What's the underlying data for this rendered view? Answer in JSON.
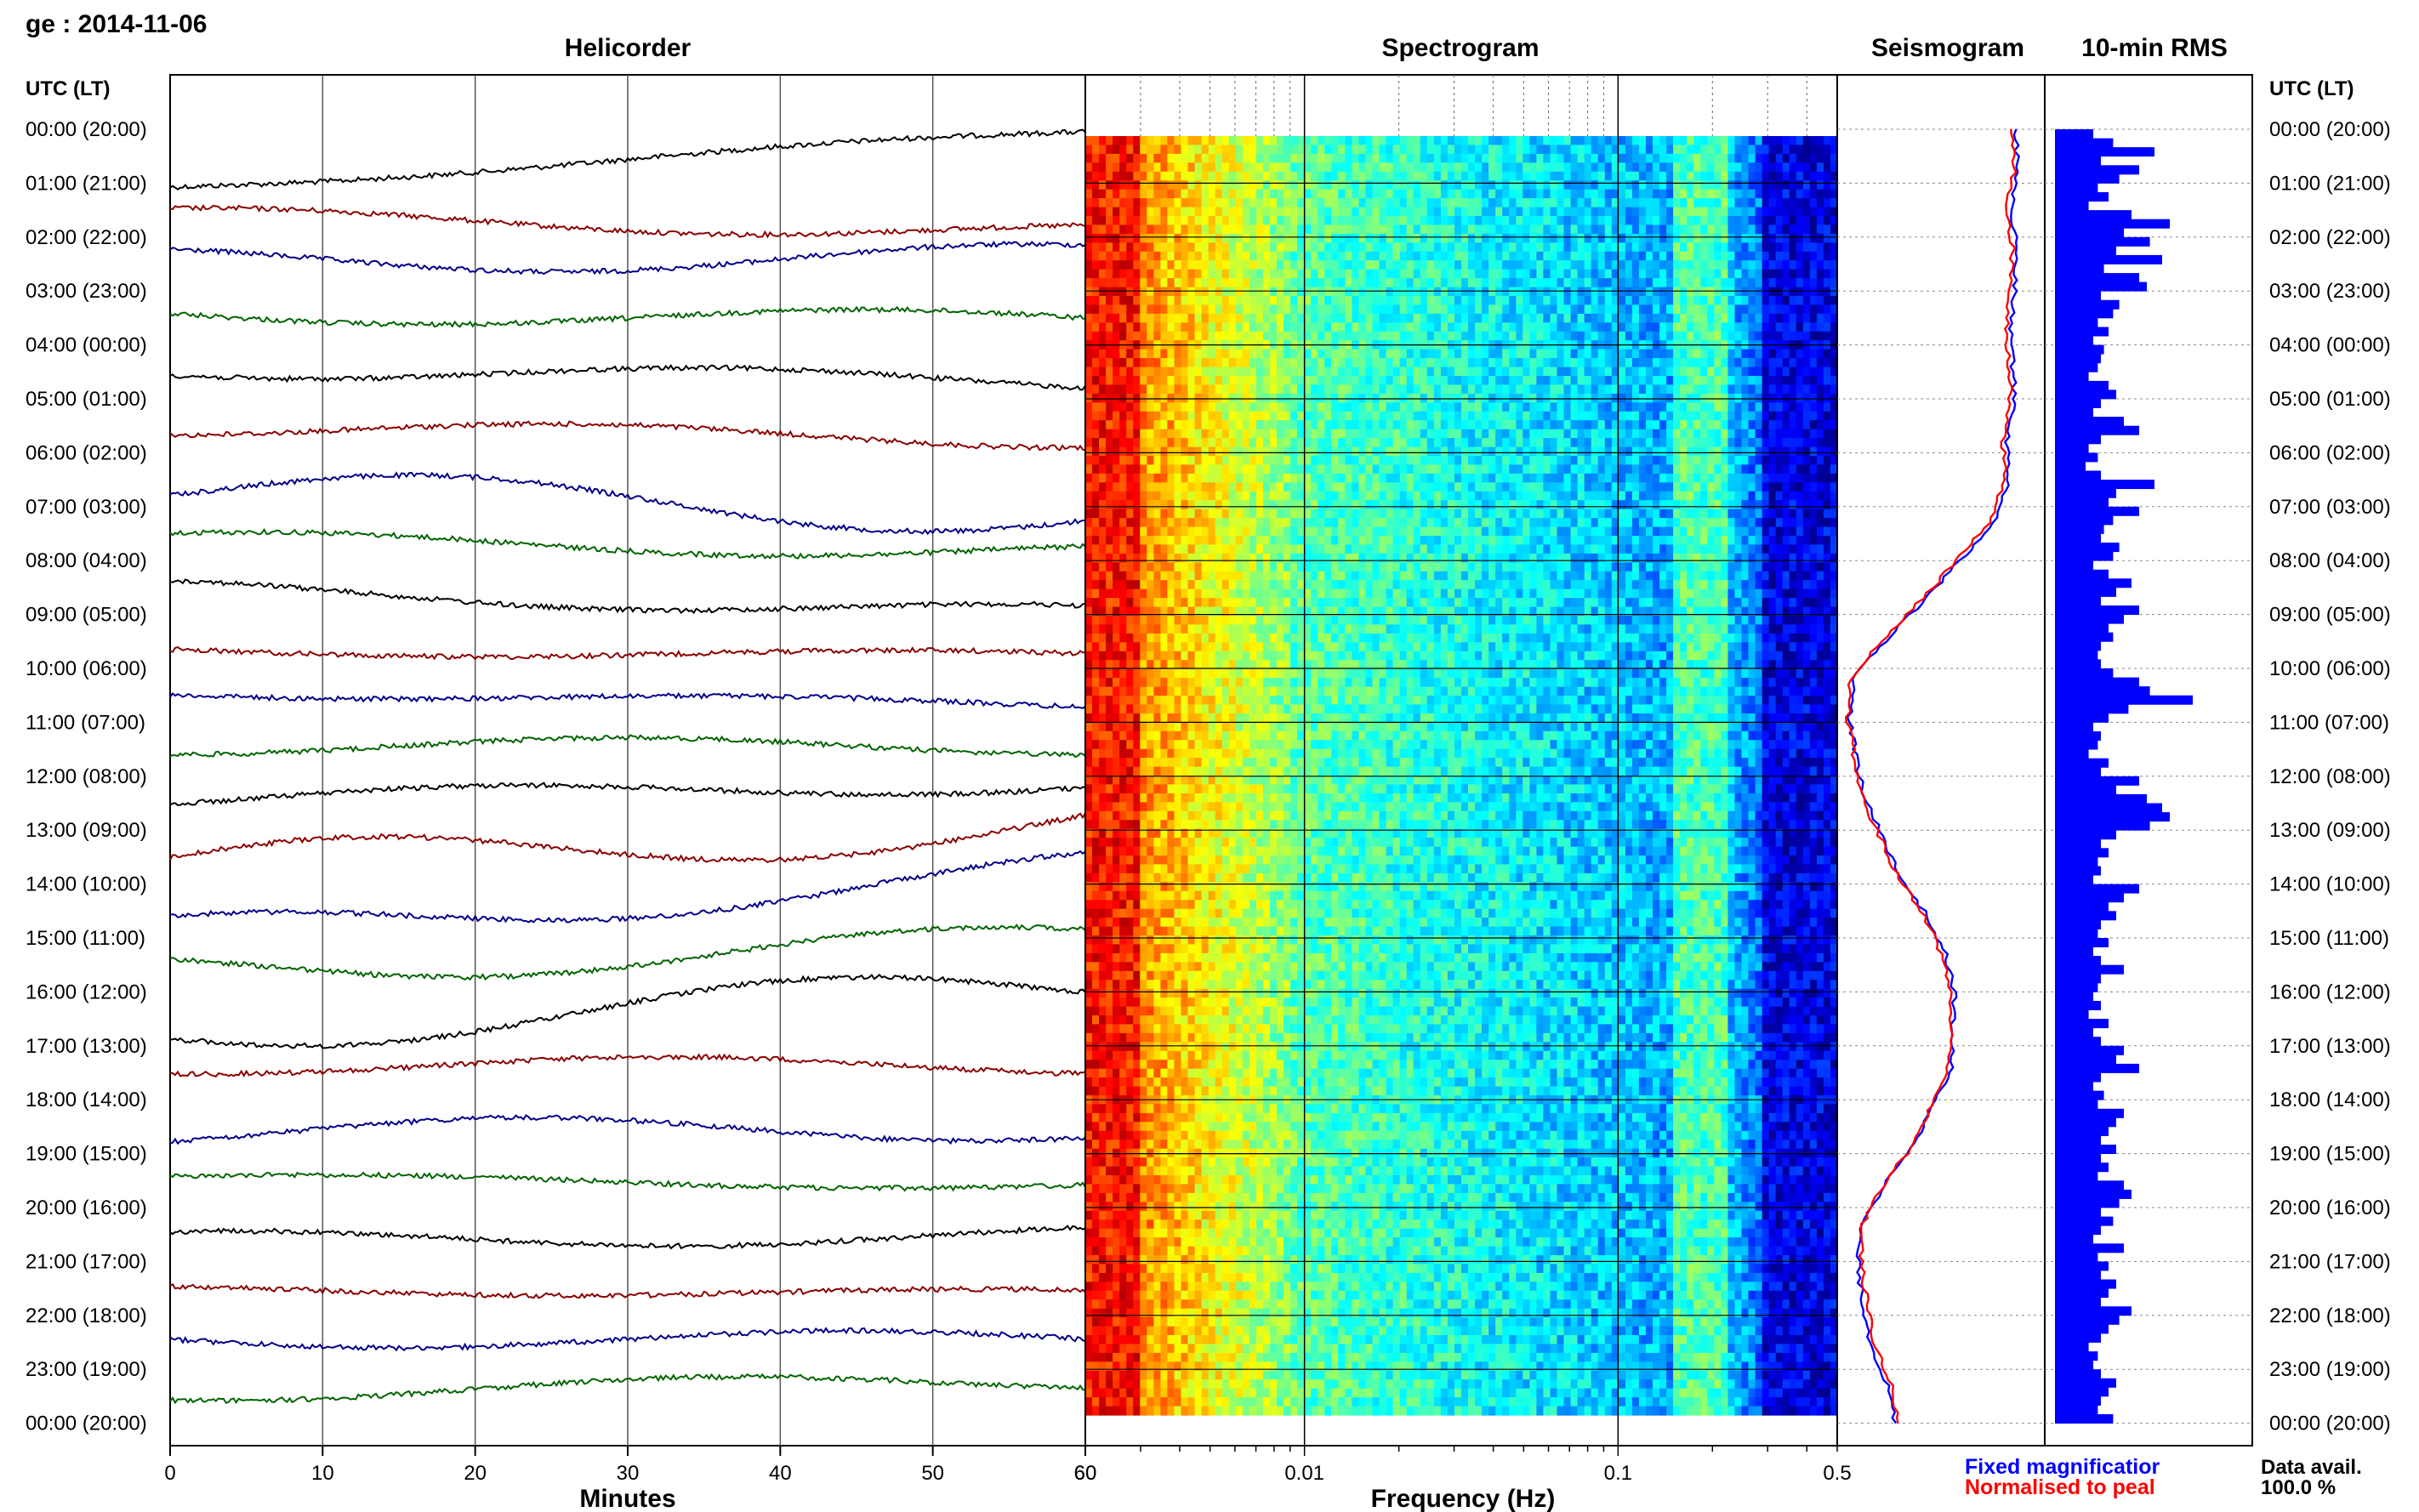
{
  "header": {
    "station_date": "ge : 2014-11-06"
  },
  "panels": {
    "helicorder": "Helicorder",
    "spectrogram": "Spectrogram",
    "seismogram": "Seismogram",
    "rms": "10-min RMS"
  },
  "time_axis": {
    "label": "UTC (LT)",
    "ticks": [
      "00:00 (20:00)",
      "01:00 (21:00)",
      "02:00 (22:00)",
      "03:00 (23:00)",
      "04:00 (00:00)",
      "05:00 (01:00)",
      "06:00 (02:00)",
      "07:00 (03:00)",
      "08:00 (04:00)",
      "09:00 (05:00)",
      "10:00 (06:00)",
      "11:00 (07:00)",
      "12:00 (08:00)",
      "13:00 (09:00)",
      "14:00 (10:00)",
      "15:00 (11:00)",
      "16:00 (12:00)",
      "17:00 (13:00)",
      "18:00 (14:00)",
      "19:00 (15:00)",
      "20:00 (16:00)",
      "21:00 (17:00)",
      "22:00 (18:00)",
      "23:00 (19:00)",
      "00:00 (20:00)"
    ]
  },
  "minutes_axis": {
    "label": "Minutes",
    "ticks": [
      "0",
      "10",
      "20",
      "30",
      "40",
      "50",
      "60"
    ]
  },
  "frequency_axis": {
    "label": "Frequency (Hz)",
    "ticks": [
      "0.01",
      "0.1",
      "0.5"
    ],
    "scale": "log"
  },
  "legend": {
    "fixed": "Fixed magnificatior",
    "normalised": "Normalised to peal",
    "fixed_color": "#0000ff",
    "normalised_color": "#ff0000"
  },
  "data_availability": {
    "label": "Data avail.",
    "value": "100.0 %"
  },
  "colors": {
    "helicorder_traces": [
      "#000000",
      "#8b0000",
      "#00008b",
      "#006400"
    ],
    "rms_bars": "#0000ff",
    "spectrogram_low": "#00008b",
    "spectrogram_high": "#ff3300"
  },
  "chart_data": [
    {
      "type": "line",
      "title": "Helicorder",
      "xlabel": "Minutes",
      "xlim": [
        0,
        60
      ],
      "rows": 24,
      "trace_colors_cycle": [
        "black",
        "darkred",
        "darkblue",
        "darkgreen"
      ],
      "drift": [
        [
          -40,
          -5,
          25
        ],
        [
          -10,
          10,
          -30
        ],
        [
          0,
          15,
          5
        ],
        [
          0,
          10,
          -5
        ],
        [
          0,
          10,
          -15
        ],
        [
          -5,
          10,
          -20
        ],
        [
          -15,
          25,
          -45
        ],
        [
          -10,
          10,
          -25
        ],
        [
          -5,
          10,
          -35
        ],
        [
          -15,
          5,
          -20
        ],
        [
          0,
          5,
          -15
        ],
        [
          0,
          10,
          0
        ],
        [
          0,
          10,
          20
        ],
        [
          -15,
          25,
          35
        ],
        [
          -30,
          20,
          45
        ],
        [
          -10,
          20,
          25
        ],
        [
          -20,
          25,
          35
        ],
        [
          5,
          10,
          5
        ],
        [
          -10,
          15,
          -5
        ],
        [
          0,
          5,
          -10
        ],
        [
          -10,
          10,
          -5
        ],
        [
          -5,
          5,
          -10
        ],
        [
          0,
          10,
          0
        ],
        [
          0,
          10,
          15
        ]
      ],
      "grid": true
    },
    {
      "type": "heatmap",
      "title": "Spectrogram",
      "xlabel": "Frequency (Hz)",
      "xscale": "log",
      "xlim": [
        0.002,
        0.5
      ],
      "ylabel": "UTC (LT)",
      "rows": 144,
      "colormap": "jet"
    },
    {
      "type": "line",
      "title": "Seismogram",
      "series": [
        {
          "name": "Fixed magnificatior",
          "color": "#0000ff",
          "values": [
            0.88,
            0.9,
            0.86,
            0.89,
            0.88,
            0.86,
            0.87,
            0.88,
            0.84,
            0.85,
            0.78,
            0.6,
            0.42,
            0.22,
            0.05,
            0.03,
            0.06,
            0.1,
            0.2,
            0.28,
            0.42,
            0.52,
            0.57,
            0.56,
            0.55,
            0.45,
            0.35,
            0.2,
            0.08,
            0.07,
            0.1,
            0.14,
            0.22,
            0.26
          ]
        },
        {
          "name": "Normalised to peal",
          "color": "#ff0000",
          "values": [
            0.86,
            0.88,
            0.84,
            0.87,
            0.86,
            0.84,
            0.85,
            0.86,
            0.82,
            0.83,
            0.75,
            0.58,
            0.4,
            0.2,
            0.03,
            0.02,
            0.05,
            0.09,
            0.18,
            0.27,
            0.41,
            0.5,
            0.55,
            0.55,
            0.54,
            0.44,
            0.34,
            0.19,
            0.09,
            0.09,
            0.12,
            0.16,
            0.24,
            0.28
          ]
        }
      ]
    },
    {
      "type": "bar",
      "title": "10-min RMS",
      "orientation": "horizontal",
      "rows": 144,
      "values": [
        0.25,
        0.38,
        0.65,
        0.3,
        0.55,
        0.42,
        0.28,
        0.35,
        0.22,
        0.5,
        0.75,
        0.45,
        0.62,
        0.4,
        0.7,
        0.32,
        0.55,
        0.6,
        0.3,
        0.42,
        0.38,
        0.28,
        0.35,
        0.25,
        0.32,
        0.3,
        0.28,
        0.22,
        0.35,
        0.4,
        0.3,
        0.25,
        0.45,
        0.55,
        0.3,
        0.22,
        0.28,
        0.2,
        0.3,
        0.65,
        0.4,
        0.35,
        0.55,
        0.38,
        0.32,
        0.3,
        0.42,
        0.38,
        0.25,
        0.35,
        0.5,
        0.4,
        0.3,
        0.55,
        0.45,
        0.35,
        0.38,
        0.3,
        0.28,
        0.3,
        0.38,
        0.55,
        0.62,
        0.9,
        0.48,
        0.35,
        0.25,
        0.3,
        0.28,
        0.22,
        0.35,
        0.3,
        0.55,
        0.4,
        0.6,
        0.7,
        0.75,
        0.62,
        0.4,
        0.3,
        0.35,
        0.28,
        0.3,
        0.25,
        0.55,
        0.45,
        0.35,
        0.4,
        0.3,
        0.28,
        0.35,
        0.25,
        0.3,
        0.45,
        0.3,
        0.28,
        0.25,
        0.3,
        0.22,
        0.35,
        0.25,
        0.3,
        0.45,
        0.4,
        0.55,
        0.3,
        0.25,
        0.32,
        0.28,
        0.45,
        0.4,
        0.35,
        0.3,
        0.4,
        0.3,
        0.35,
        0.28,
        0.45,
        0.5,
        0.42,
        0.3,
        0.38,
        0.3,
        0.25,
        0.45,
        0.28,
        0.35,
        0.3,
        0.4,
        0.35,
        0.3,
        0.5,
        0.42,
        0.35,
        0.3,
        0.22,
        0.28,
        0.25,
        0.3,
        0.4,
        0.35,
        0.3,
        0.28,
        0.38
      ]
    }
  ]
}
